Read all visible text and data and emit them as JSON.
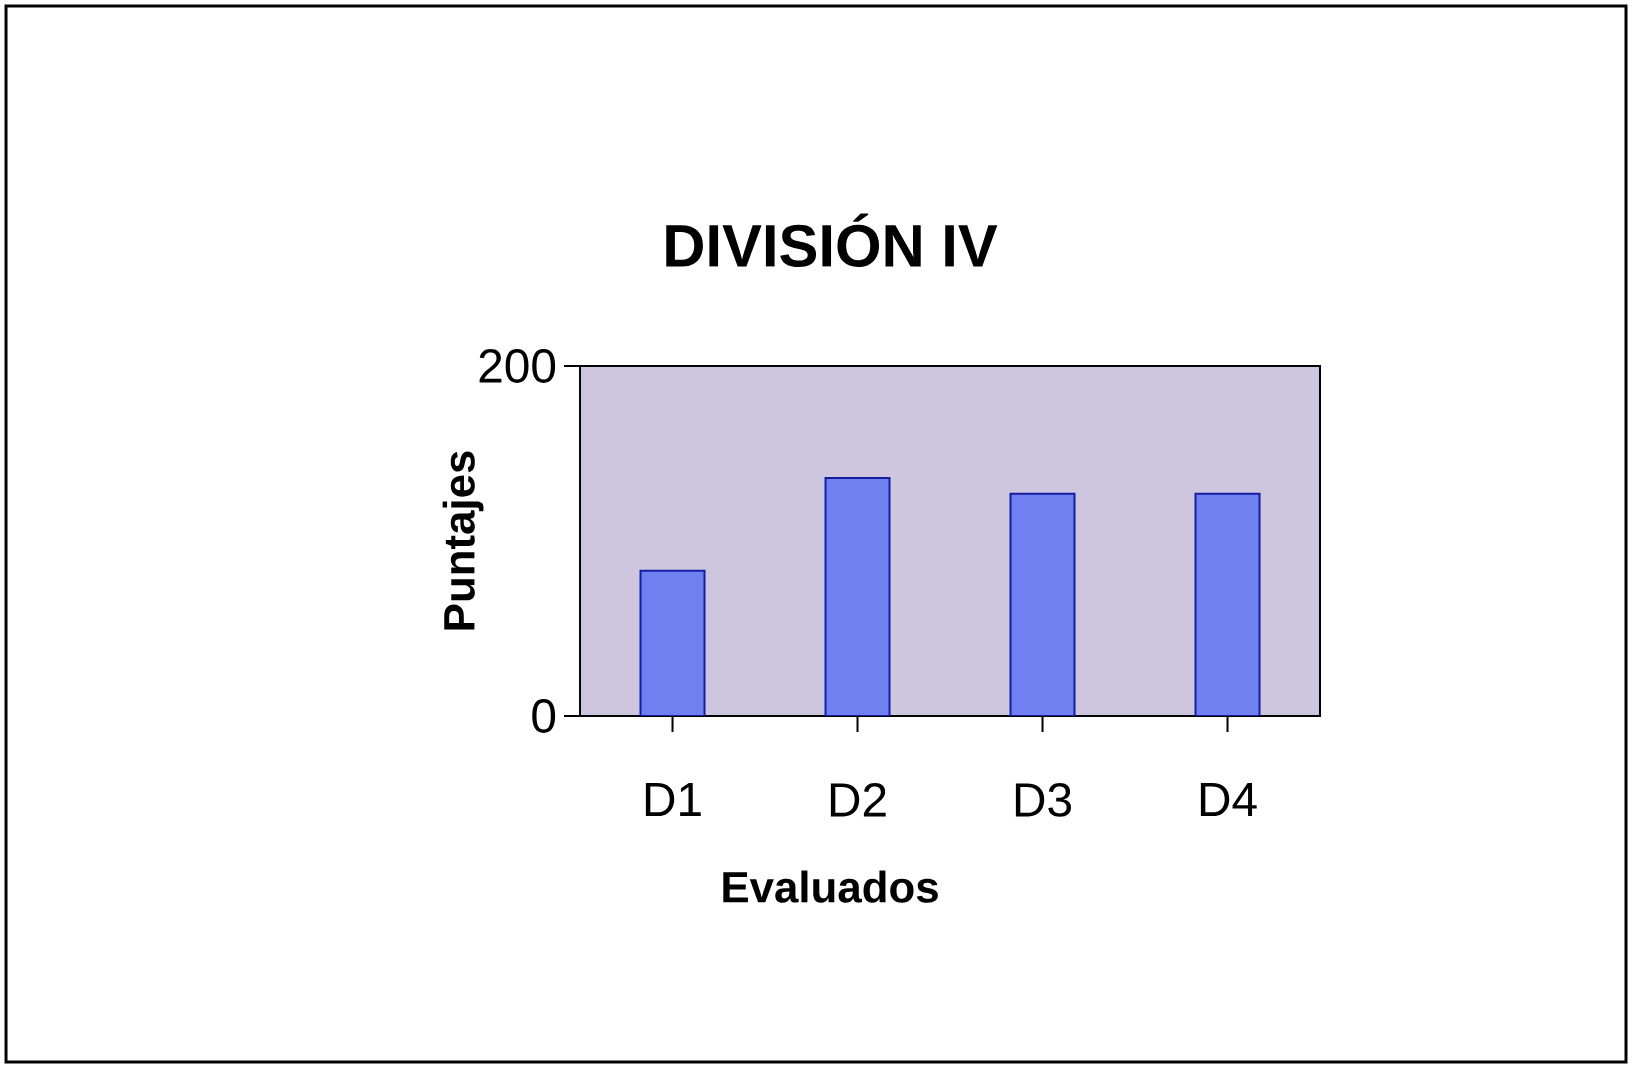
{
  "chart_data": {
    "type": "bar",
    "title": "DIVISIÓN IV",
    "xlabel": "Evaluados",
    "ylabel": "Puntajes",
    "categories": [
      "D1",
      "D2",
      "D3",
      "D4"
    ],
    "values": [
      83,
      136,
      127,
      127
    ],
    "color": "#7080f0",
    "ylim": [
      0,
      200
    ],
    "yticks": [
      0,
      200
    ],
    "grid": false
  }
}
